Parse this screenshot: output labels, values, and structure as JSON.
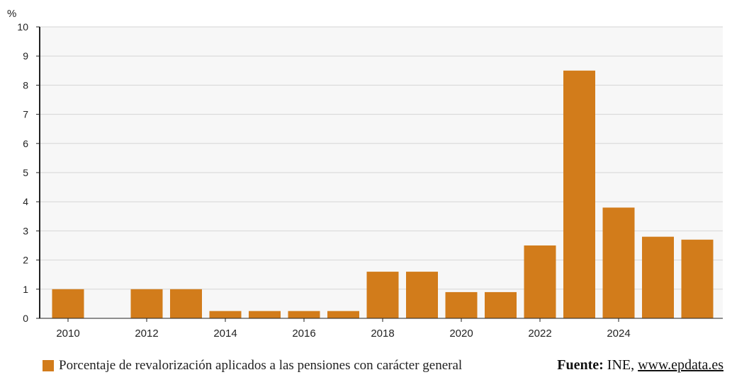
{
  "chart_data": {
    "type": "bar",
    "unit_label": "%",
    "categories": [
      "2010",
      "2011",
      "2012",
      "2013",
      "2014",
      "2015",
      "2016",
      "2017",
      "2018",
      "2019",
      "2020",
      "2021",
      "2022",
      "2023",
      "2024",
      "2025",
      "2026"
    ],
    "series": [
      {
        "name": "Porcentaje de revalorización aplicados a las pensiones con carácter general",
        "values": [
          1,
          0,
          1,
          1,
          0.25,
          0.25,
          0.25,
          0.25,
          1.6,
          1.6,
          0.9,
          0.9,
          2.5,
          8.5,
          3.8,
          2.8,
          2.7
        ]
      }
    ],
    "x_tick_labels": [
      "2010",
      "2012",
      "2014",
      "2016",
      "2018",
      "2020",
      "2022",
      "2024"
    ],
    "ylim": [
      0,
      10
    ],
    "y_ticks": [
      "0",
      "1",
      "2",
      "3",
      "4",
      "5",
      "6",
      "7",
      "8",
      "9",
      "10"
    ],
    "grid": true,
    "legend_position": "bottom-left",
    "bar_color": "#d27c1b"
  },
  "footer": {
    "source_label": "Fuente:",
    "source_text": "INE,",
    "source_link": "www.epdata.es"
  }
}
